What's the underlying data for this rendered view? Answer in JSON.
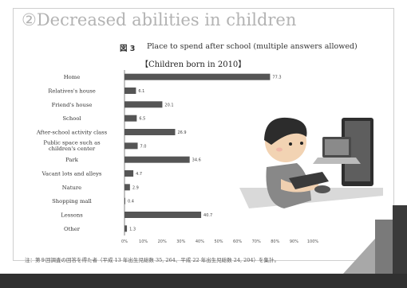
{
  "slide": {
    "heading": "②Decreased abilities in children",
    "figure_number": "図 3",
    "figure_title": "Place to spend after school (multiple answers allowed)",
    "subtitle": "【Children born in 2010】",
    "footnote": "注：第９回調査の回答を得た者（平成 13 年出生児総数 35, 264、平成 22 年出生児総数 24, 204）を集計。"
  },
  "chart_data": {
    "type": "bar",
    "orientation": "horizontal",
    "title": "Place to spend after school (multiple answers allowed)",
    "subtitle": "【Children born in 2010】",
    "categories": [
      "Home",
      "Relatives's house",
      "Friend's house",
      "School",
      "After-school activity class",
      "Public space such as children's center",
      "Park",
      "Vacant lots and alleys",
      "Nature",
      "Shopping mall",
      "Lessons",
      "Other"
    ],
    "values": [
      77.3,
      6.1,
      20.1,
      6.5,
      26.9,
      7.0,
      34.6,
      4.7,
      2.9,
      0.4,
      40.7,
      1.3
    ],
    "value_labels": [
      "77.3",
      "6.1",
      "20.1",
      "6.5",
      "26.9",
      "7.0",
      "34.6",
      "4.7",
      "2.9",
      "0.4",
      "40.7",
      "1.3"
    ],
    "x_ticks": [
      "0%",
      "10%",
      "20%",
      "30%",
      "40%",
      "50%",
      "60%",
      "70%",
      "80%",
      "90%",
      "100%"
    ],
    "xlim": [
      0,
      100
    ],
    "grid": false,
    "bar_color": "#555555"
  },
  "colors": {
    "heading": "#b3b3b3",
    "bar": "#555555",
    "bottom_bar": "#303030"
  },
  "illustration": {
    "icon": "child-at-computer-illustration"
  }
}
